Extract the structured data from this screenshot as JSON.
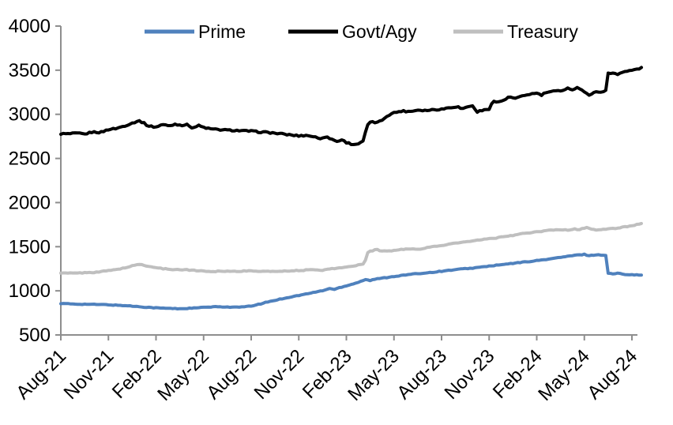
{
  "chart_data": {
    "type": "line",
    "title": "",
    "xlabel": "",
    "ylabel": "",
    "grid": false,
    "x_axis": {
      "unit": "month",
      "tick_labels": [
        "Aug-21",
        "Nov-21",
        "Feb-22",
        "May-22",
        "Aug-22",
        "Nov-22",
        "Feb-23",
        "May-23",
        "Aug-23",
        "Nov-23",
        "Feb-24",
        "May-24",
        "Aug-24"
      ],
      "tick_month_index": [
        0,
        3,
        6,
        9,
        12,
        15,
        18,
        21,
        24,
        27,
        30,
        33,
        36
      ],
      "data_end_month_index": 36.6
    },
    "y_axis": {
      "min": 500,
      "max": 4000,
      "step": 500,
      "tick_labels": [
        "500",
        "1000",
        "1500",
        "2000",
        "2500",
        "3000",
        "3500",
        "4000"
      ]
    },
    "legend": {
      "position": "top",
      "items": [
        {
          "label": "Prime",
          "color": "#4f81bd"
        },
        {
          "label": "Govt/Agy",
          "color": "#000000"
        },
        {
          "label": "Treasury",
          "color": "#bfbfbf"
        }
      ]
    },
    "series": [
      {
        "name": "Prime",
        "color": "#4f81bd",
        "points": [
          [
            0,
            855
          ],
          [
            1,
            850
          ],
          [
            2,
            846
          ],
          [
            3,
            842
          ],
          [
            4,
            833
          ],
          [
            5,
            820
          ],
          [
            6,
            807
          ],
          [
            7,
            800
          ],
          [
            7.5,
            797
          ],
          [
            8,
            801
          ],
          [
            8.5,
            806
          ],
          [
            9,
            812
          ],
          [
            9.5,
            817
          ],
          [
            10,
            820
          ],
          [
            10.5,
            816
          ],
          [
            11,
            814
          ],
          [
            11.5,
            817
          ],
          [
            12,
            827
          ],
          [
            12.5,
            848
          ],
          [
            13,
            872
          ],
          [
            14,
            913
          ],
          [
            15,
            948
          ],
          [
            16,
            983
          ],
          [
            16.5,
            1003
          ],
          [
            17,
            1028
          ],
          [
            17.2,
            1014
          ],
          [
            17.6,
            1038
          ],
          [
            18,
            1058
          ],
          [
            18.5,
            1082
          ],
          [
            18.9,
            1108
          ],
          [
            19.2,
            1128
          ],
          [
            19.5,
            1117
          ],
          [
            19.8,
            1132
          ],
          [
            20.2,
            1142
          ],
          [
            21,
            1163
          ],
          [
            22,
            1186
          ],
          [
            23,
            1203
          ],
          [
            24,
            1222
          ],
          [
            25,
            1243
          ],
          [
            26,
            1258
          ],
          [
            27,
            1280
          ],
          [
            28,
            1300
          ],
          [
            29,
            1322
          ],
          [
            30,
            1342
          ],
          [
            31,
            1366
          ],
          [
            32,
            1392
          ],
          [
            32.5,
            1404
          ],
          [
            33,
            1413
          ],
          [
            33.3,
            1398
          ],
          [
            33.7,
            1408
          ],
          [
            34.1,
            1406
          ],
          [
            34.35,
            1402
          ],
          [
            34.5,
            1198
          ],
          [
            34.8,
            1192
          ],
          [
            35.1,
            1198
          ],
          [
            35.5,
            1188
          ],
          [
            36,
            1184
          ],
          [
            36.6,
            1176
          ]
        ]
      },
      {
        "name": "Govt/Agy",
        "color": "#000000",
        "points": [
          [
            0,
            2780
          ],
          [
            0.5,
            2778
          ],
          [
            1,
            2786
          ],
          [
            1.5,
            2775
          ],
          [
            2,
            2800
          ],
          [
            2.5,
            2795
          ],
          [
            3,
            2828
          ],
          [
            3.5,
            2840
          ],
          [
            4,
            2868
          ],
          [
            4.5,
            2900
          ],
          [
            4.9,
            2928
          ],
          [
            5.2,
            2905
          ],
          [
            5.5,
            2868
          ],
          [
            6,
            2856
          ],
          [
            6.4,
            2886
          ],
          [
            6.8,
            2868
          ],
          [
            7.2,
            2888
          ],
          [
            7.6,
            2878
          ],
          [
            8,
            2882
          ],
          [
            8.3,
            2846
          ],
          [
            8.7,
            2872
          ],
          [
            9,
            2852
          ],
          [
            9.5,
            2832
          ],
          [
            10,
            2826
          ],
          [
            10.5,
            2820
          ],
          [
            11,
            2818
          ],
          [
            11.5,
            2812
          ],
          [
            12,
            2810
          ],
          [
            12.5,
            2800
          ],
          [
            13,
            2796
          ],
          [
            13.5,
            2786
          ],
          [
            14,
            2776
          ],
          [
            14.5,
            2766
          ],
          [
            15,
            2756
          ],
          [
            15.5,
            2762
          ],
          [
            16,
            2746
          ],
          [
            16.3,
            2722
          ],
          [
            16.6,
            2748
          ],
          [
            17,
            2726
          ],
          [
            17.4,
            2692
          ],
          [
            17.7,
            2712
          ],
          [
            18,
            2682
          ],
          [
            18.4,
            2658
          ],
          [
            18.8,
            2668
          ],
          [
            19.05,
            2692
          ],
          [
            19.3,
            2868
          ],
          [
            19.6,
            2922
          ],
          [
            19.9,
            2902
          ],
          [
            20.2,
            2928
          ],
          [
            20.6,
            2988
          ],
          [
            21,
            3018
          ],
          [
            21.5,
            3038
          ],
          [
            22,
            3032
          ],
          [
            22.5,
            3050
          ],
          [
            23,
            3044
          ],
          [
            23.5,
            3054
          ],
          [
            24,
            3058
          ],
          [
            24.5,
            3078
          ],
          [
            25,
            3088
          ],
          [
            25.3,
            3058
          ],
          [
            25.6,
            3088
          ],
          [
            26,
            3094
          ],
          [
            26.2,
            3028
          ],
          [
            26.6,
            3044
          ],
          [
            27,
            3062
          ],
          [
            27.2,
            3148
          ],
          [
            27.6,
            3138
          ],
          [
            28,
            3168
          ],
          [
            28.3,
            3198
          ],
          [
            28.6,
            3178
          ],
          [
            29,
            3198
          ],
          [
            29.5,
            3228
          ],
          [
            30,
            3238
          ],
          [
            30.3,
            3218
          ],
          [
            30.6,
            3248
          ],
          [
            31,
            3258
          ],
          [
            31.5,
            3268
          ],
          [
            32,
            3298
          ],
          [
            32.3,
            3278
          ],
          [
            32.6,
            3308
          ],
          [
            33,
            3248
          ],
          [
            33.3,
            3222
          ],
          [
            33.6,
            3248
          ],
          [
            34,
            3254
          ],
          [
            34.35,
            3268
          ],
          [
            34.5,
            3462
          ],
          [
            34.8,
            3468
          ],
          [
            35.1,
            3458
          ],
          [
            35.4,
            3478
          ],
          [
            35.7,
            3488
          ],
          [
            36,
            3498
          ],
          [
            36.3,
            3512
          ],
          [
            36.6,
            3524
          ]
        ]
      },
      {
        "name": "Treasury",
        "color": "#bfbfbf",
        "points": [
          [
            0,
            1200
          ],
          [
            1,
            1201
          ],
          [
            2,
            1208
          ],
          [
            3,
            1228
          ],
          [
            4,
            1258
          ],
          [
            4.8,
            1296
          ],
          [
            5,
            1301
          ],
          [
            5.4,
            1283
          ],
          [
            6,
            1262
          ],
          [
            6.5,
            1250
          ],
          [
            7,
            1243
          ],
          [
            8,
            1237
          ],
          [
            9,
            1224
          ],
          [
            9.5,
            1217
          ],
          [
            10,
            1224
          ],
          [
            11,
            1221
          ],
          [
            12,
            1226
          ],
          [
            13,
            1219
          ],
          [
            14,
            1224
          ],
          [
            15,
            1230
          ],
          [
            16,
            1241
          ],
          [
            16.5,
            1234
          ],
          [
            17,
            1249
          ],
          [
            18,
            1268
          ],
          [
            18.6,
            1288
          ],
          [
            19,
            1300
          ],
          [
            19.15,
            1312
          ],
          [
            19.35,
            1437
          ],
          [
            19.6,
            1452
          ],
          [
            19.9,
            1468
          ],
          [
            20.2,
            1452
          ],
          [
            20.6,
            1448
          ],
          [
            21,
            1458
          ],
          [
            21.5,
            1468
          ],
          [
            22,
            1478
          ],
          [
            22.4,
            1468
          ],
          [
            22.8,
            1480
          ],
          [
            23,
            1488
          ],
          [
            23.5,
            1500
          ],
          [
            24,
            1514
          ],
          [
            24.5,
            1529
          ],
          [
            25,
            1543
          ],
          [
            25.5,
            1554
          ],
          [
            26,
            1564
          ],
          [
            26.5,
            1579
          ],
          [
            27,
            1590
          ],
          [
            27.5,
            1601
          ],
          [
            28,
            1614
          ],
          [
            28.5,
            1629
          ],
          [
            29,
            1644
          ],
          [
            29.5,
            1657
          ],
          [
            30,
            1667
          ],
          [
            30.5,
            1678
          ],
          [
            31,
            1689
          ],
          [
            31.5,
            1694
          ],
          [
            32,
            1689
          ],
          [
            32.4,
            1699
          ],
          [
            32.7,
            1694
          ],
          [
            33,
            1709
          ],
          [
            33.2,
            1719
          ],
          [
            33.5,
            1699
          ],
          [
            33.8,
            1689
          ],
          [
            34.1,
            1694
          ],
          [
            34.5,
            1700
          ],
          [
            35,
            1709
          ],
          [
            35.5,
            1724
          ],
          [
            36,
            1739
          ],
          [
            36.3,
            1749
          ],
          [
            36.6,
            1759
          ]
        ]
      }
    ]
  },
  "colors": {
    "axis": "#8e8e8e",
    "text": "#000000",
    "background": "#ffffff"
  }
}
